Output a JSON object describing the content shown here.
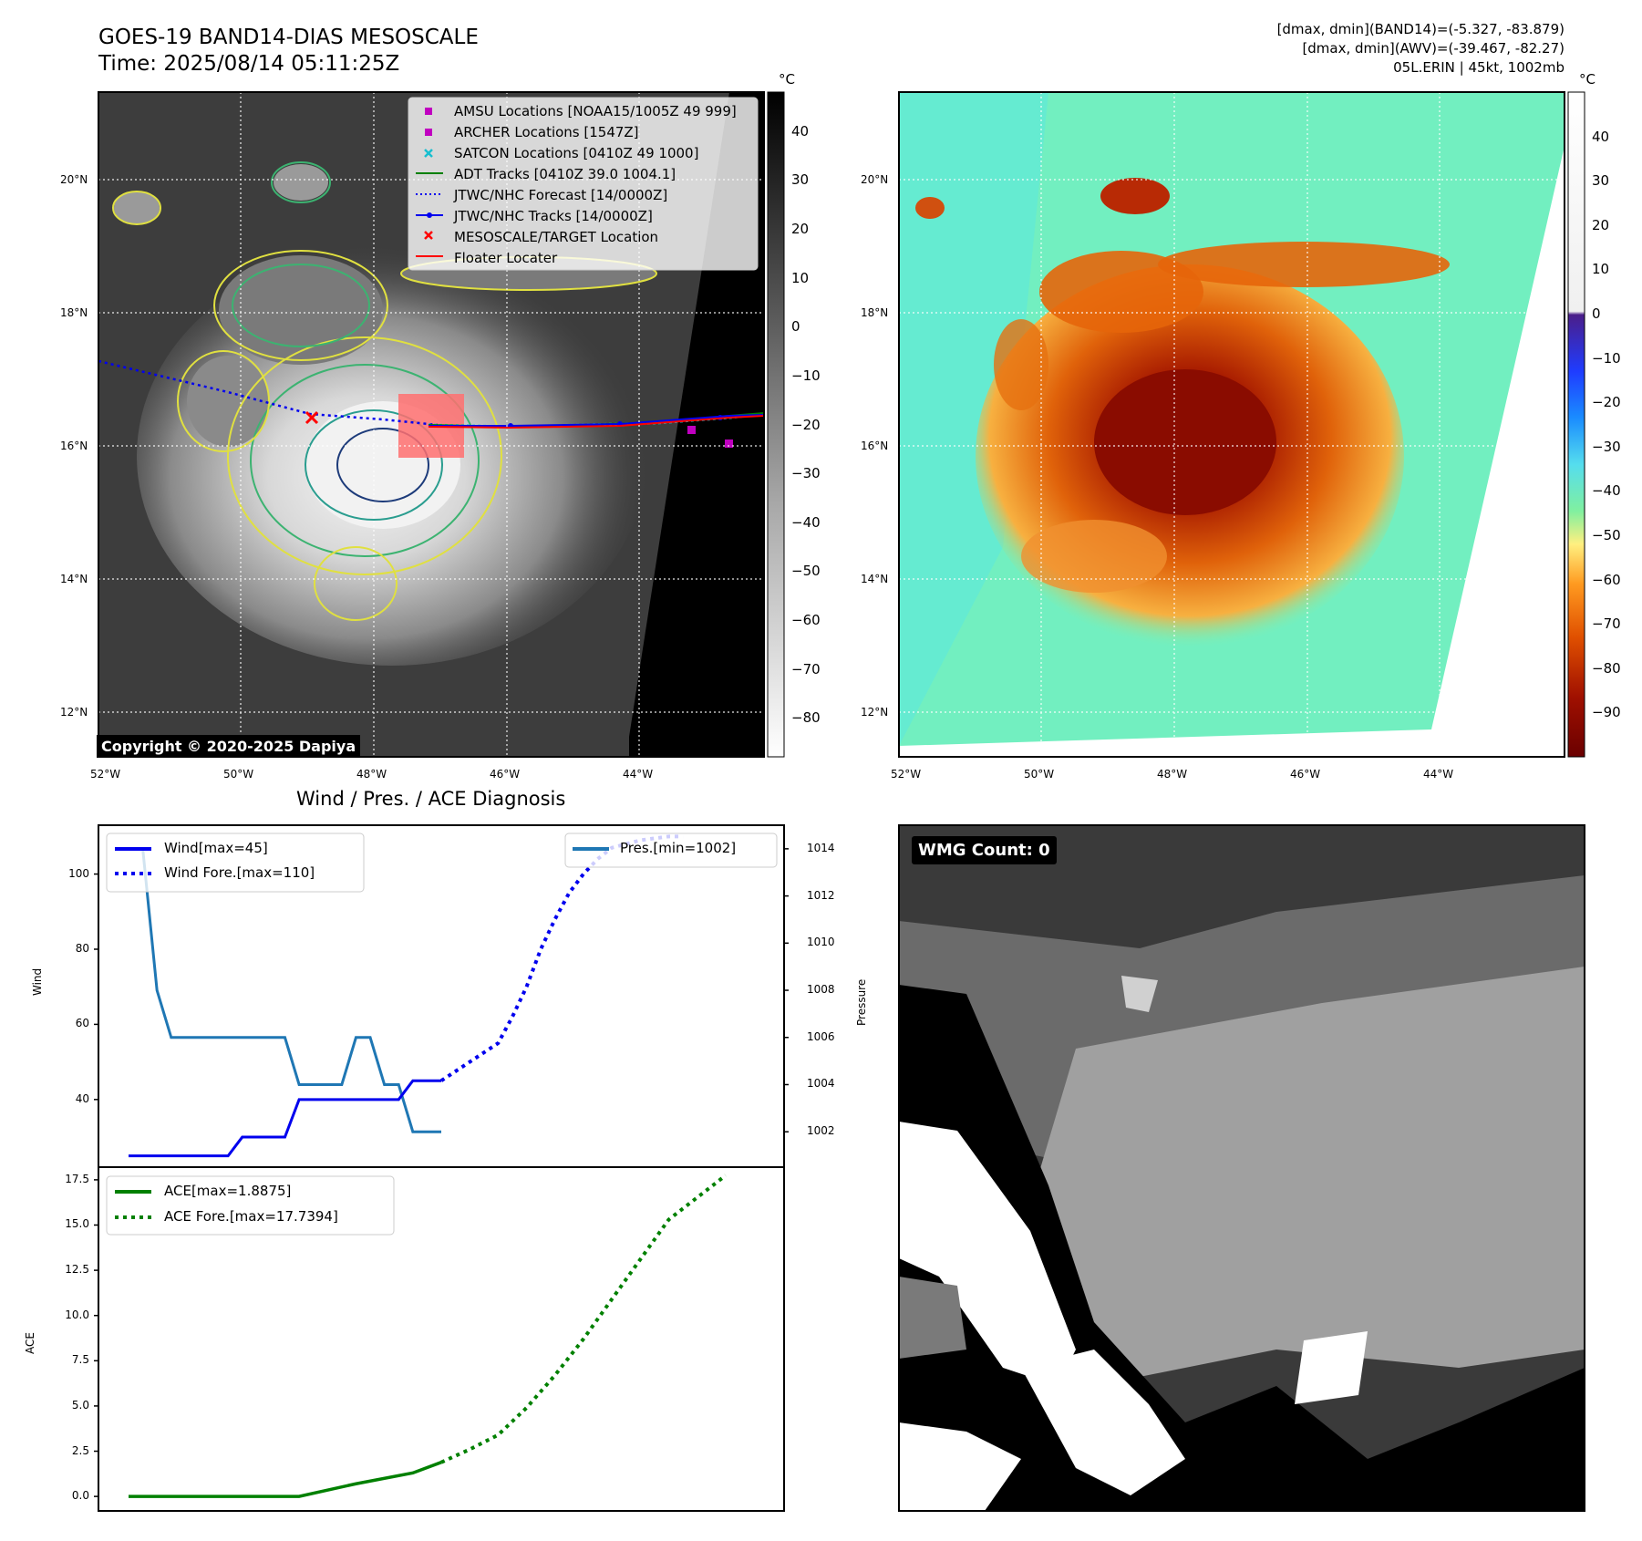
{
  "title": {
    "line1": "GOES-19 BAND14-DIAS MESOSCALE",
    "line2": "Time: 2025/08/14 05:11:25Z"
  },
  "info": {
    "line1": "[dmax, dmin](BAND14)=(-5.327, -83.879)",
    "line2": "[dmax, dmin](AWV)=(-39.467, -82.27)",
    "line3": "05L.ERIN | 45kt, 1002mb"
  },
  "copyright": "Copyright © 2020-2025 Dapiya",
  "wmg_label": "WMG Count: 0",
  "colors": {
    "wind": "#0000ee",
    "pres": "#1f77b4",
    "ace": "#008000",
    "track_red": "#ff0000"
  },
  "maps": {
    "lat_ticks": [
      "20°N",
      "18°N",
      "16°N",
      "14°N",
      "12°N"
    ],
    "lon_ticks": [
      "52°W",
      "50°W",
      "48°W",
      "46°W",
      "44°W"
    ],
    "unit": "°C",
    "cbar_gray": [
      "40",
      "30",
      "20",
      "10",
      "0",
      "−10",
      "−20",
      "−30",
      "−40",
      "−50",
      "−60",
      "−70",
      "−80"
    ],
    "cbar_color": [
      "40",
      "30",
      "20",
      "10",
      "0",
      "−10",
      "−20",
      "−30",
      "−40",
      "−50",
      "−60",
      "−70",
      "−80",
      "−90"
    ]
  },
  "legend": [
    {
      "label": "AMSU Locations [NOAA15/1005Z 49 999]",
      "icon": "square",
      "color": "#c000c0"
    },
    {
      "label": "ARCHER Locations [1547Z]",
      "icon": "square",
      "color": "#c000c0"
    },
    {
      "label": "SATCON Locations [0410Z 49 1000]",
      "icon": "x-mark",
      "color": "#17becf"
    },
    {
      "label": "ADT Tracks [0410Z 39.0 1004.1]",
      "icon": "line",
      "color": "#008000"
    },
    {
      "label": "JTWC/NHC Forecast [14/0000Z]",
      "icon": "dotted-line",
      "color": "#0000ee"
    },
    {
      "label": "JTWC/NHC Tracks [14/0000Z]",
      "icon": "line-dot",
      "color": "#0000ee"
    },
    {
      "label": "MESOSCALE/TARGET Location",
      "icon": "x-mark",
      "color": "#ff0000"
    },
    {
      "label": "Floater Locater",
      "icon": "line",
      "color": "#ff0000"
    }
  ],
  "chart_data": [
    {
      "type": "line",
      "title": "Wind / Pres. / ACE Diagnosis",
      "ylabel": "Wind",
      "ylabel_right": "Pressure",
      "ylim": [
        22,
        113
      ],
      "ylim_right": [
        1000.5,
        1015
      ],
      "y_ticks": [
        "100",
        "80",
        "60",
        "40"
      ],
      "y_ticks_right": [
        "1014",
        "1012",
        "1010",
        "1008",
        "1006",
        "1004",
        "1002"
      ],
      "legend_left": [
        "Wind[max=45]",
        "Wind Fore.[max=110]"
      ],
      "legend_right": [
        "Pres.[min=1002]"
      ],
      "x": [
        0,
        1,
        2,
        3,
        4,
        5,
        6,
        7,
        8,
        9,
        10,
        11,
        12,
        13,
        14,
        15,
        16,
        17,
        18,
        19,
        20,
        21,
        22
      ],
      "series": [
        {
          "name": "Wind",
          "x": [
            0,
            1,
            2,
            3,
            4,
            5,
            6,
            7,
            8,
            9,
            10,
            11,
            12,
            13,
            14,
            15,
            16,
            17,
            18,
            19,
            20,
            21,
            22
          ],
          "values": [
            25,
            25,
            25,
            25,
            25,
            25,
            25,
            25,
            30,
            30,
            30,
            30,
            40,
            40,
            40,
            40,
            40,
            40,
            40,
            40,
            45,
            45,
            45
          ]
        },
        {
          "name": "Wind Fore.",
          "x": [
            22,
            24,
            26,
            27,
            28,
            29,
            30,
            31,
            32,
            33,
            34,
            36,
            38,
            39
          ],
          "values": [
            45,
            50,
            55,
            62,
            70,
            80,
            88,
            95,
            100,
            104,
            107,
            109,
            110,
            110
          ]
        },
        {
          "name": "Pres.",
          "x": [
            0,
            1,
            2,
            3,
            4,
            5,
            6,
            7,
            8,
            9,
            10,
            11,
            12,
            13,
            14,
            15,
            16,
            17,
            18,
            19,
            20,
            21,
            22
          ],
          "values": [
            1014,
            1014,
            1008,
            1006,
            1006,
            1006,
            1006,
            1006,
            1006,
            1006,
            1006,
            1006,
            1004,
            1004,
            1004,
            1004,
            1006,
            1006,
            1004,
            1004,
            1002,
            1002,
            1002
          ]
        }
      ]
    },
    {
      "type": "line",
      "ylabel": "ACE",
      "ylim": [
        -0.8,
        18.2
      ],
      "y_ticks": [
        "17.5",
        "15.0",
        "12.5",
        "10.0",
        "7.5",
        "5.0",
        "2.5",
        "0.0"
      ],
      "legend": [
        "ACE[max=1.8875]",
        "ACE Fore.[max=17.7394]"
      ],
      "series": [
        {
          "name": "ACE",
          "x": [
            0,
            4,
            8,
            12,
            16,
            20,
            22
          ],
          "values": [
            0,
            0,
            0,
            0,
            0.7,
            1.3,
            1.8875
          ]
        },
        {
          "name": "ACE Fore.",
          "x": [
            22,
            24,
            26,
            28,
            30,
            32,
            34,
            36,
            38,
            42
          ],
          "values": [
            1.8875,
            2.6,
            3.4,
            4.9,
            6.7,
            8.7,
            10.9,
            13.1,
            15.3,
            17.7394
          ]
        }
      ]
    }
  ]
}
